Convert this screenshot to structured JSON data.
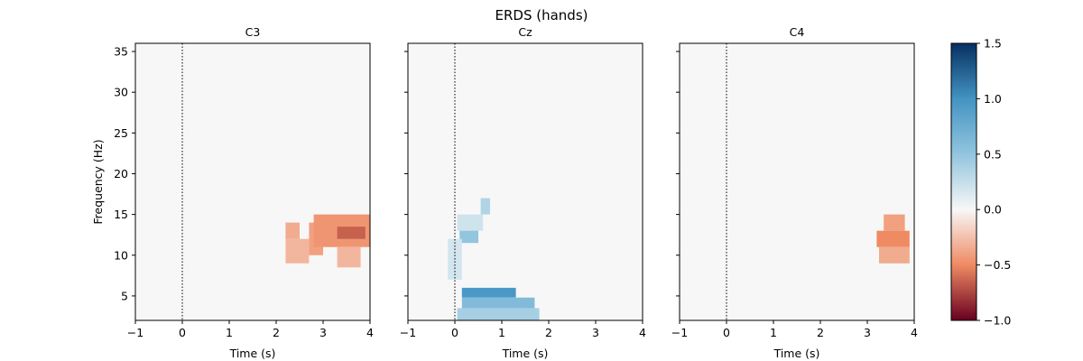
{
  "figure": {
    "title": "ERDS (hands)"
  },
  "chart_data": [
    {
      "type": "heatmap",
      "title": "C3",
      "xlabel": "Time (s)",
      "ylabel": "Frequency (Hz)",
      "xlim": [
        -1,
        4
      ],
      "ylim": [
        2,
        36
      ],
      "xticks": [
        -1,
        0,
        1,
        2,
        3,
        4
      ],
      "yticks": [
        5,
        10,
        15,
        20,
        25,
        30,
        35
      ],
      "event_line_x": 0,
      "significant_regions": [
        {
          "t0": 2.2,
          "t1": 2.5,
          "f0": 12.0,
          "f1": 14.0,
          "value": -0.35
        },
        {
          "t0": 2.2,
          "t1": 2.7,
          "f0": 9.0,
          "f1": 12.0,
          "value": -0.3
        },
        {
          "t0": 2.7,
          "t1": 3.0,
          "f0": 10.0,
          "f1": 14.0,
          "value": -0.4
        },
        {
          "t0": 2.8,
          "t1": 4.0,
          "f0": 11.0,
          "f1": 15.0,
          "value": -0.45
        },
        {
          "t0": 3.3,
          "t1": 3.9,
          "f0": 12.0,
          "f1": 13.5,
          "value": -0.65
        },
        {
          "t0": 3.3,
          "t1": 3.8,
          "f0": 8.5,
          "f1": 11.0,
          "value": -0.3
        }
      ]
    },
    {
      "type": "heatmap",
      "title": "Cz",
      "xlabel": "Time (s)",
      "ylabel": "",
      "xlim": [
        -1,
        4
      ],
      "ylim": [
        2,
        36
      ],
      "xticks": [
        -1,
        0,
        1,
        2,
        3,
        4
      ],
      "yticks": [
        5,
        10,
        15,
        20,
        25,
        30,
        35
      ],
      "event_line_x": 0,
      "significant_regions": [
        {
          "t0": 0.55,
          "t1": 0.75,
          "f0": 15.0,
          "f1": 17.0,
          "value": 0.35
        },
        {
          "t0": 0.05,
          "t1": 0.6,
          "f0": 13.0,
          "f1": 15.0,
          "value": 0.2
        },
        {
          "t0": 0.1,
          "t1": 0.5,
          "f0": 11.5,
          "f1": 13.0,
          "value": 0.5
        },
        {
          "t0": -0.15,
          "t1": 0.15,
          "f0": 7.0,
          "f1": 12.0,
          "value": 0.18
        },
        {
          "t0": 0.15,
          "t1": 1.3,
          "f0": 4.8,
          "f1": 6.0,
          "value": 0.95
        },
        {
          "t0": 0.15,
          "t1": 1.7,
          "f0": 3.5,
          "f1": 4.8,
          "value": 0.6
        },
        {
          "t0": 0.05,
          "t1": 1.8,
          "f0": 2.0,
          "f1": 3.5,
          "value": 0.4
        }
      ]
    },
    {
      "type": "heatmap",
      "title": "C4",
      "xlabel": "Time (s)",
      "ylabel": "",
      "xlim": [
        -1,
        4
      ],
      "ylim": [
        2,
        36
      ],
      "xticks": [
        -1,
        0,
        1,
        2,
        3,
        4
      ],
      "yticks": [
        5,
        10,
        15,
        20,
        25,
        30,
        35
      ],
      "event_line_x": 0,
      "significant_regions": [
        {
          "t0": 3.35,
          "t1": 3.8,
          "f0": 13.0,
          "f1": 15.0,
          "value": -0.4
        },
        {
          "t0": 3.2,
          "t1": 3.9,
          "f0": 11.0,
          "f1": 13.0,
          "value": -0.5
        },
        {
          "t0": 3.25,
          "t1": 3.9,
          "f0": 9.0,
          "f1": 11.0,
          "value": -0.35
        }
      ]
    }
  ],
  "colorbar": {
    "colormap": "RdBu",
    "vmin": -1.0,
    "vmax": 1.5,
    "ticks": [
      -1.0,
      -0.5,
      0.0,
      0.5,
      1.0,
      1.5
    ],
    "tick_labels": [
      "−1.0",
      "−0.5",
      "0.0",
      "0.5",
      "1.0",
      "1.5"
    ]
  },
  "colors": {
    "background_cell": "#f7f7f7",
    "event_line": "#000000"
  }
}
